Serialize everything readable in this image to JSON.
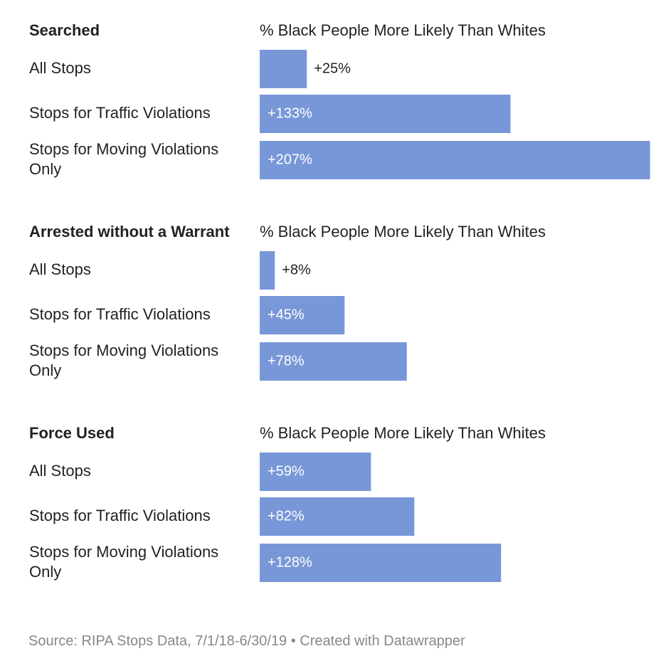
{
  "colors": {
    "bar": "#7897d8",
    "text": "#222222",
    "source": "#888888",
    "label_inside": "#ffffff"
  },
  "chart_data": [
    {
      "type": "bar",
      "orientation": "horizontal",
      "title": "Searched",
      "subtitle": "% Black People More Likely Than Whites",
      "categories": [
        "All Stops",
        "Stops for Traffic Violations",
        "Stops for Moving Violations Only"
      ],
      "category_lines": [
        [
          "All Stops"
        ],
        [
          "Stops for Traffic Violations"
        ],
        [
          "Stops for Moving Violations",
          "Only"
        ]
      ],
      "values": [
        25,
        133,
        207
      ],
      "value_labels": [
        "+25%",
        "+133%",
        "+207%"
      ]
    },
    {
      "type": "bar",
      "orientation": "horizontal",
      "title": "Arrested without a Warrant",
      "subtitle": "% Black People More Likely Than Whites",
      "categories": [
        "All Stops",
        "Stops for Traffic Violations",
        "Stops for Moving Violations Only"
      ],
      "category_lines": [
        [
          "All Stops"
        ],
        [
          "Stops for Traffic Violations"
        ],
        [
          "Stops for Moving Violations",
          "Only"
        ]
      ],
      "values": [
        8,
        45,
        78
      ],
      "value_labels": [
        "+8%",
        "+45%",
        "+78%"
      ]
    },
    {
      "type": "bar",
      "orientation": "horizontal",
      "title": "Force Used",
      "subtitle": "% Black People More Likely Than Whites",
      "categories": [
        "All Stops",
        "Stops for Traffic Violations",
        "Stops for Moving Violations Only"
      ],
      "category_lines": [
        [
          "All Stops"
        ],
        [
          "Stops for Traffic Violations"
        ],
        [
          "Stops for Moving Violations",
          "Only"
        ]
      ],
      "values": [
        59,
        82,
        128
      ],
      "value_labels": [
        "+59%",
        "+82%",
        "+128%"
      ]
    }
  ],
  "footer": {
    "source": "Source: RIPA Stops Data, 7/1/18-6/30/19 • Created with Datawrapper"
  }
}
